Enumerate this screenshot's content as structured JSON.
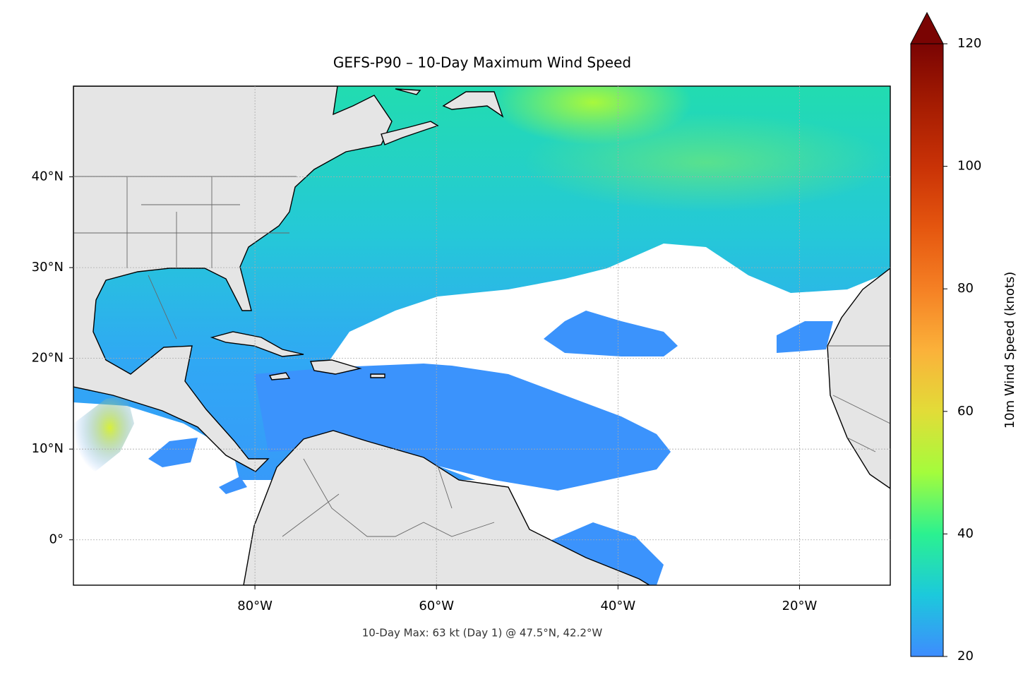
{
  "chart_data": {
    "type": "map",
    "title": "GEFS-P90 – 10-Day Maximum Wind Speed",
    "annotation": "10-Day Max: 63 kt (Day 1) @ 47.5°N, 42.2°W",
    "xlim": [
      -100,
      -10
    ],
    "ylim": [
      -5,
      50
    ],
    "xticks": [
      {
        "value": -80,
        "label": "80°W"
      },
      {
        "value": -60,
        "label": "60°W"
      },
      {
        "value": -40,
        "label": "40°W"
      },
      {
        "value": -20,
        "label": "20°W"
      }
    ],
    "yticks": [
      {
        "value": 0,
        "label": "0°"
      },
      {
        "value": 10,
        "label": "10°N"
      },
      {
        "value": 20,
        "label": "20°N"
      },
      {
        "value": 30,
        "label": "30°N"
      },
      {
        "value": 40,
        "label": "40°N"
      }
    ],
    "grid": true,
    "colorbar": {
      "label": "10m Wind Speed (knots)",
      "lim": [
        20,
        120
      ],
      "ticks": [
        20,
        40,
        60,
        80,
        100,
        120
      ],
      "colormap": "turbo",
      "extend": "max"
    }
  }
}
